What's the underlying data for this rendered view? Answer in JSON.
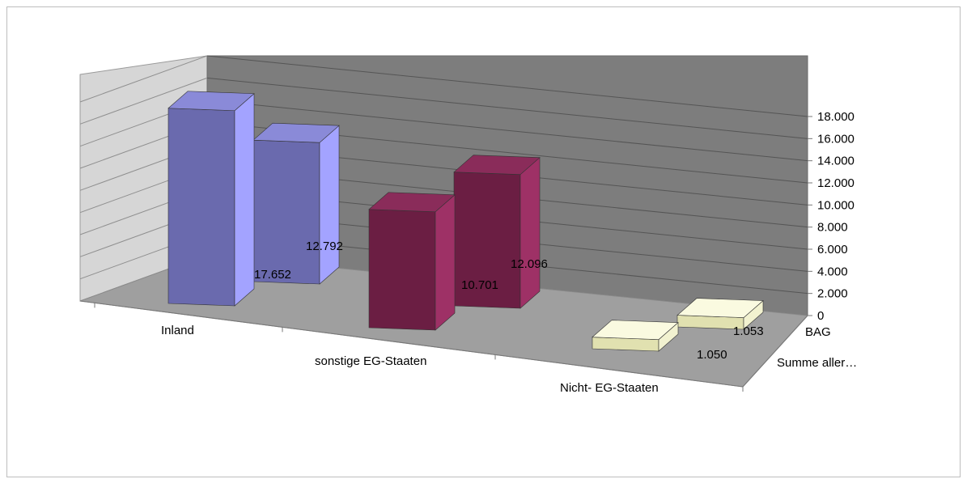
{
  "chart_data": {
    "type": "bar",
    "variant": "3d-clustered",
    "categories": [
      "Inland",
      "sonstige  EG-Staaten",
      "Nicht- EG-Staaten"
    ],
    "series": [
      {
        "name": "Summe aller…",
        "values": [
          17652,
          10701,
          1050
        ],
        "labels": [
          "17.652",
          "10.701",
          "1.050"
        ]
      },
      {
        "name": "BAG",
        "values": [
          12792,
          12096,
          1053
        ],
        "labels": [
          "12.792",
          "12.096",
          "1.053"
        ]
      }
    ],
    "series_colors": [
      [
        "#6a6aae",
        "#a3a3ff",
        "#8080d4",
        "#8a8ad8"
      ],
      [
        "#6b1e43",
        "#9e3166",
        "#7e2650",
        "#8a2c5a"
      ],
      [
        "#e1e1b0",
        "#f2f2d0",
        "#eaeac0",
        "#fafae0"
      ]
    ],
    "ylim": [
      0,
      18000
    ],
    "ytick_step": 2000,
    "yticks": [
      "0",
      "2.000",
      "4.000",
      "6.000",
      "8.000",
      "10.000",
      "12.000",
      "14.000",
      "16.000",
      "18.000"
    ],
    "grid": true
  }
}
